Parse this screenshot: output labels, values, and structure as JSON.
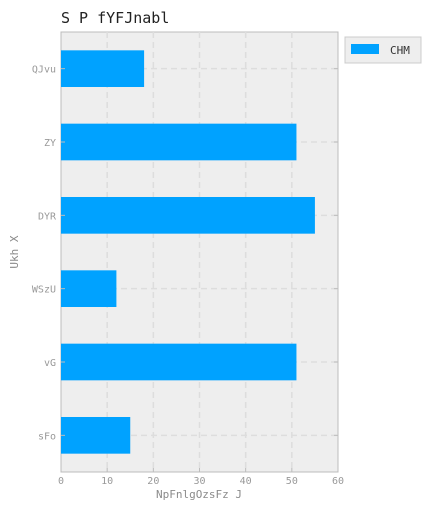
{
  "chart_data": {
    "type": "bar",
    "orientation": "horizontal",
    "title": "S P fYFJnabl",
    "xlabel": "NpFnlgOzsFz J",
    "ylabel": "Ukh X",
    "categories": [
      "QJvu",
      "ZY",
      "DYR",
      "WSzU",
      "vG",
      "sFo"
    ],
    "series": [
      {
        "name": "CHM",
        "values": [
          18,
          51,
          55,
          12,
          51,
          15
        ]
      }
    ],
    "xlim": [
      0,
      60
    ],
    "xticks": [
      0,
      10,
      20,
      30,
      40,
      50,
      60
    ],
    "grid": true,
    "legend": "outside-top-right",
    "colors": {
      "bar": "#00a2ff",
      "plot_bg": "#eeeeee",
      "grid": "#dddddd",
      "axis": "#bcbcbc",
      "tick_text": "#999999",
      "label_text": "#8a8a8a",
      "title_text": "#222222"
    }
  }
}
